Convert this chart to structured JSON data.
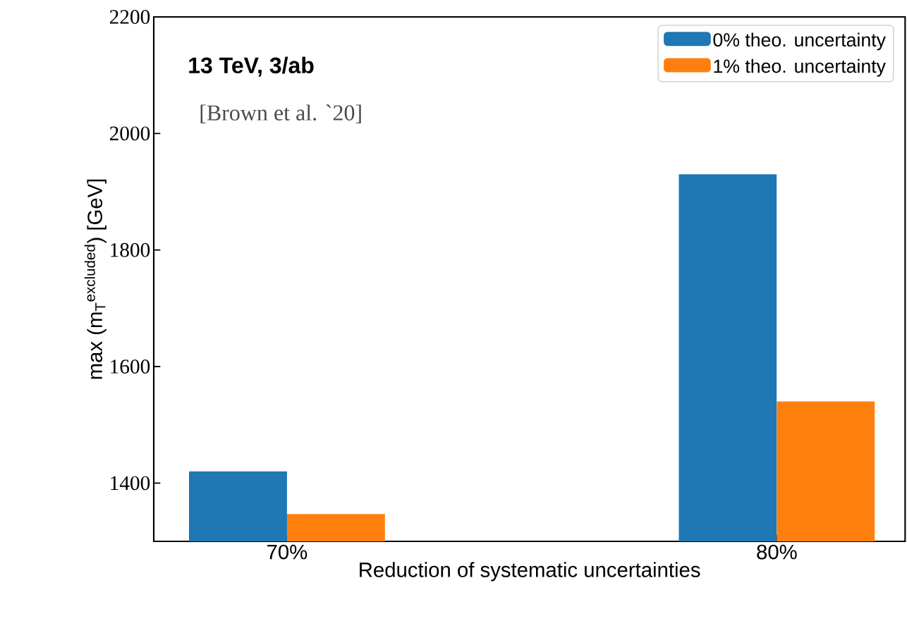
{
  "chart_data": {
    "type": "bar",
    "xlabel": "Reduction of systematic uncertainties",
    "ylabel": "max (m$_{T}$$^{excluded}$) [GeV]",
    "categories": [
      "70%",
      "80%"
    ],
    "series": [
      {
        "name": "0% theo. uncertainty",
        "color": "#1f77b4",
        "values": [
          1420,
          1930
        ]
      },
      {
        "name": "1% theo. uncertainty",
        "color": "#ff7f0e",
        "values": [
          1347,
          1540
        ]
      }
    ],
    "ylim": [
      1300,
      2200
    ],
    "yticks": [
      1400,
      1600,
      1800,
      2000,
      2200
    ],
    "legend": "top right",
    "annotations": [
      "**13 TeV, 3/ab**",
      "[Brown et al. `20]"
    ]
  }
}
